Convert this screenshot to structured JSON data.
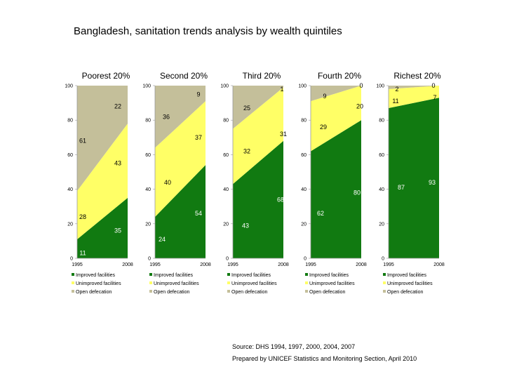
{
  "title": "Bangladesh, sanitation trends analysis by wealth quintiles",
  "source_line1": "Source: DHS 1994, 1997, 2000, 2004, 2007",
  "source_line2": "Prepared by UNICEF Statistics and Monitoring Section, April 2010",
  "colors": {
    "improved": "#117a11",
    "unimproved": "#ffff66",
    "open": "#c4bf9a"
  },
  "chart_data": [
    {
      "type": "area",
      "stacked": true,
      "title": "Poorest 20%",
      "x": [
        1995,
        2008
      ],
      "x_tick_labels": [
        "1995",
        "2008"
      ],
      "y_ticks": [
        "0",
        "20",
        "40",
        "60",
        "80",
        "100"
      ],
      "ylim": [
        0,
        100
      ],
      "series": [
        {
          "name": "Improved facilities",
          "values": [
            11,
            35
          ]
        },
        {
          "name": "Unimproved facilities",
          "values": [
            28,
            43
          ]
        },
        {
          "name": "Open defecation",
          "values": [
            61,
            22
          ]
        }
      ],
      "legend": [
        "Improved facilities",
        "Unimproved facilities",
        "Open defecation"
      ]
    },
    {
      "type": "area",
      "stacked": true,
      "title": "Second 20%",
      "x": [
        1995,
        2008
      ],
      "x_tick_labels": [
        "1995",
        "2008"
      ],
      "y_ticks": [
        "0",
        "20",
        "40",
        "60",
        "80",
        "100"
      ],
      "ylim": [
        0,
        100
      ],
      "series": [
        {
          "name": "Improved facilities",
          "values": [
            24,
            54
          ]
        },
        {
          "name": "Unimproved facilities",
          "values": [
            40,
            37
          ]
        },
        {
          "name": "Open defecation",
          "values": [
            36,
            9
          ]
        }
      ],
      "legend": [
        "Improved facilities",
        "Unimproved facilities",
        "Open defecation"
      ]
    },
    {
      "type": "area",
      "stacked": true,
      "title": "Third 20%",
      "x": [
        1995,
        2008
      ],
      "x_tick_labels": [
        "1995",
        "2008"
      ],
      "y_ticks": [
        "0",
        "20",
        "40",
        "60",
        "80",
        "100"
      ],
      "ylim": [
        0,
        100
      ],
      "series": [
        {
          "name": "Improved facilities",
          "values": [
            43,
            68
          ]
        },
        {
          "name": "Unimproved facilities",
          "values": [
            32,
            31
          ]
        },
        {
          "name": "Open defecation",
          "values": [
            25,
            1
          ]
        }
      ],
      "legend": [
        "Improved facilities",
        "Unimproved facilities",
        "Open defecation"
      ]
    },
    {
      "type": "area",
      "stacked": true,
      "title": "Fourth 20%",
      "x": [
        1995,
        2008
      ],
      "x_tick_labels": [
        "1995",
        "2008"
      ],
      "y_ticks": [
        "0",
        "20",
        "40",
        "60",
        "80",
        "100"
      ],
      "ylim": [
        0,
        100
      ],
      "series": [
        {
          "name": "Improved facilities",
          "values": [
            62,
            80
          ]
        },
        {
          "name": "Unimproved facilities",
          "values": [
            29,
            20
          ]
        },
        {
          "name": "Open defecation",
          "values": [
            9,
            0
          ]
        }
      ],
      "legend": [
        "Improved facilities",
        "Unimproved facilities",
        "Open defecation"
      ]
    },
    {
      "type": "area",
      "stacked": true,
      "title": "Richest 20%",
      "x": [
        1995,
        2008
      ],
      "x_tick_labels": [
        "1995",
        "2008"
      ],
      "y_ticks": [
        "0",
        "20",
        "40",
        "60",
        "80",
        "100"
      ],
      "ylim": [
        0,
        100
      ],
      "series": [
        {
          "name": "Improved facilities",
          "values": [
            87,
            93
          ]
        },
        {
          "name": "Unimproved facilities",
          "values": [
            11,
            7
          ]
        },
        {
          "name": "Open defecation",
          "values": [
            2,
            0
          ]
        }
      ],
      "legend": [
        "Improved facilities",
        "Unimproved facilities",
        "Open defecation"
      ]
    }
  ]
}
